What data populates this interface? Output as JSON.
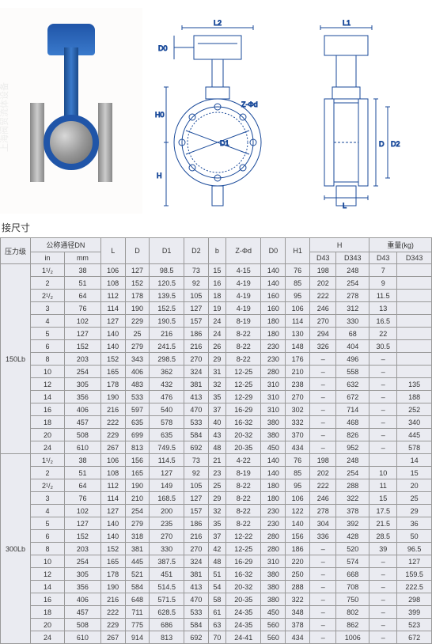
{
  "section_label": "接尺寸",
  "watermark": "上海阀贸流体设备",
  "drawing_labels": {
    "L2": "L2",
    "D0": "D0",
    "H0": "H0",
    "H": "H",
    "D1": "D1",
    "Z_phi_d": "Z-Φd",
    "L1": "L1",
    "D": "D",
    "D2": "D2",
    "L": "L"
  },
  "table": {
    "header_row1": {
      "pressure": "压力级",
      "dn": "公称通径DN",
      "L": "L",
      "D": "D",
      "D1": "D1",
      "D2": "D2",
      "b": "b",
      "Zd": "Z-Φd",
      "D0": "D0",
      "H1": "H1",
      "H": "H",
      "weight": "重量(kg)"
    },
    "header_row2": {
      "in": "in",
      "mm": "mm",
      "D43_h": "D43",
      "D343_h": "D343",
      "D43_w": "D43",
      "D343_w": "D343"
    },
    "groups": [
      {
        "pressure": "150Lb",
        "rows": [
          [
            "1¹/₂",
            "38",
            "106",
            "127",
            "98.5",
            "73",
            "15",
            "4-15",
            "140",
            "76",
            "198",
            "248",
            "7",
            ""
          ],
          [
            "2",
            "51",
            "108",
            "152",
            "120.5",
            "92",
            "16",
            "4-19",
            "140",
            "85",
            "202",
            "254",
            "9",
            ""
          ],
          [
            "2¹/₂",
            "64",
            "112",
            "178",
            "139.5",
            "105",
            "18",
            "4-19",
            "160",
            "95",
            "222",
            "278",
            "11.5",
            ""
          ],
          [
            "3",
            "76",
            "114",
            "190",
            "152.5",
            "127",
            "19",
            "4-19",
            "160",
            "106",
            "246",
            "312",
            "13",
            ""
          ],
          [
            "4",
            "102",
            "127",
            "229",
            "190.5",
            "157",
            "24",
            "8-19",
            "180",
            "114",
            "270",
            "330",
            "16.5",
            ""
          ],
          [
            "5",
            "127",
            "140",
            "25",
            "216",
            "186",
            "24",
            "8-22",
            "180",
            "130",
            "294",
            "68",
            "22",
            ""
          ],
          [
            "6",
            "152",
            "140",
            "279",
            "241.5",
            "216",
            "26",
            "8-22",
            "230",
            "148",
            "326",
            "404",
            "30.5",
            ""
          ],
          [
            "8",
            "203",
            "152",
            "343",
            "298.5",
            "270",
            "29",
            "8-22",
            "230",
            "176",
            "–",
            "496",
            "–",
            ""
          ],
          [
            "10",
            "254",
            "165",
            "406",
            "362",
            "324",
            "31",
            "12-25",
            "280",
            "210",
            "–",
            "558",
            "–",
            ""
          ],
          [
            "12",
            "305",
            "178",
            "483",
            "432",
            "381",
            "32",
            "12-25",
            "310",
            "238",
            "–",
            "632",
            "–",
            "135"
          ],
          [
            "14",
            "356",
            "190",
            "533",
            "476",
            "413",
            "35",
            "12-29",
            "310",
            "270",
            "–",
            "672",
            "–",
            "188"
          ],
          [
            "16",
            "406",
            "216",
            "597",
            "540",
            "470",
            "37",
            "16-29",
            "310",
            "302",
            "–",
            "714",
            "–",
            "252"
          ],
          [
            "18",
            "457",
            "222",
            "635",
            "578",
            "533",
            "40",
            "16-32",
            "380",
            "332",
            "–",
            "468",
            "–",
            "340"
          ],
          [
            "20",
            "508",
            "229",
            "699",
            "635",
            "584",
            "43",
            "20-32",
            "380",
            "370",
            "–",
            "826",
            "–",
            "445"
          ],
          [
            "24",
            "610",
            "267",
            "813",
            "749.5",
            "692",
            "48",
            "20-35",
            "450",
            "434",
            "–",
            "952",
            "–",
            "578"
          ]
        ]
      },
      {
        "pressure": "300Lb",
        "rows": [
          [
            "1¹/₂",
            "38",
            "106",
            "156",
            "114.5",
            "73",
            "21",
            "4-22",
            "140",
            "76",
            "198",
            "248",
            "",
            "14"
          ],
          [
            "2",
            "51",
            "108",
            "165",
            "127",
            "92",
            "23",
            "8-19",
            "140",
            "85",
            "202",
            "254",
            "10",
            "15"
          ],
          [
            "2¹/₂",
            "64",
            "112",
            "190",
            "149",
            "105",
            "25",
            "8-22",
            "180",
            "95",
            "222",
            "288",
            "11",
            "20"
          ],
          [
            "3",
            "76",
            "114",
            "210",
            "168.5",
            "127",
            "29",
            "8-22",
            "180",
            "106",
            "246",
            "322",
            "15",
            "25"
          ],
          [
            "4",
            "102",
            "127",
            "254",
            "200",
            "157",
            "32",
            "8-22",
            "230",
            "122",
            "278",
            "378",
            "17.5",
            "29"
          ],
          [
            "5",
            "127",
            "140",
            "279",
            "235",
            "186",
            "35",
            "8-22",
            "230",
            "140",
            "304",
            "392",
            "21.5",
            "36"
          ],
          [
            "6",
            "152",
            "140",
            "318",
            "270",
            "216",
            "37",
            "12-22",
            "280",
            "156",
            "336",
            "428",
            "28.5",
            "50"
          ],
          [
            "8",
            "203",
            "152",
            "381",
            "330",
            "270",
            "42",
            "12-25",
            "280",
            "186",
            "–",
            "520",
            "39",
            "96.5"
          ],
          [
            "10",
            "254",
            "165",
            "445",
            "387.5",
            "324",
            "48",
            "16-29",
            "310",
            "220",
            "–",
            "574",
            "–",
            "127"
          ],
          [
            "12",
            "305",
            "178",
            "521",
            "451",
            "381",
            "51",
            "16-32",
            "380",
            "250",
            "–",
            "668",
            "–",
            "159.5"
          ],
          [
            "14",
            "356",
            "190",
            "584",
            "514.5",
            "413",
            "54",
            "20-32",
            "380",
            "288",
            "–",
            "708",
            "–",
            "222.5"
          ],
          [
            "16",
            "406",
            "216",
            "648",
            "571.5",
            "470",
            "58",
            "20-35",
            "380",
            "322",
            "–",
            "750",
            "–",
            "298"
          ],
          [
            "18",
            "457",
            "222",
            "711",
            "628.5",
            "533",
            "61",
            "24-35",
            "450",
            "348",
            "–",
            "802",
            "–",
            "399"
          ],
          [
            "20",
            "508",
            "229",
            "775",
            "686",
            "584",
            "63",
            "24-35",
            "560",
            "378",
            "–",
            "862",
            "–",
            "523"
          ],
          [
            "24",
            "610",
            "267",
            "914",
            "813",
            "692",
            "70",
            "24-41",
            "560",
            "434",
            "–",
            "1006",
            "–",
            "672"
          ]
        ]
      }
    ]
  },
  "style": {
    "line_color": "#1a4a9a",
    "table_bg": "#eaebf1",
    "table_border": "#999999",
    "font_size_table": 9,
    "font_size_label": 12
  }
}
